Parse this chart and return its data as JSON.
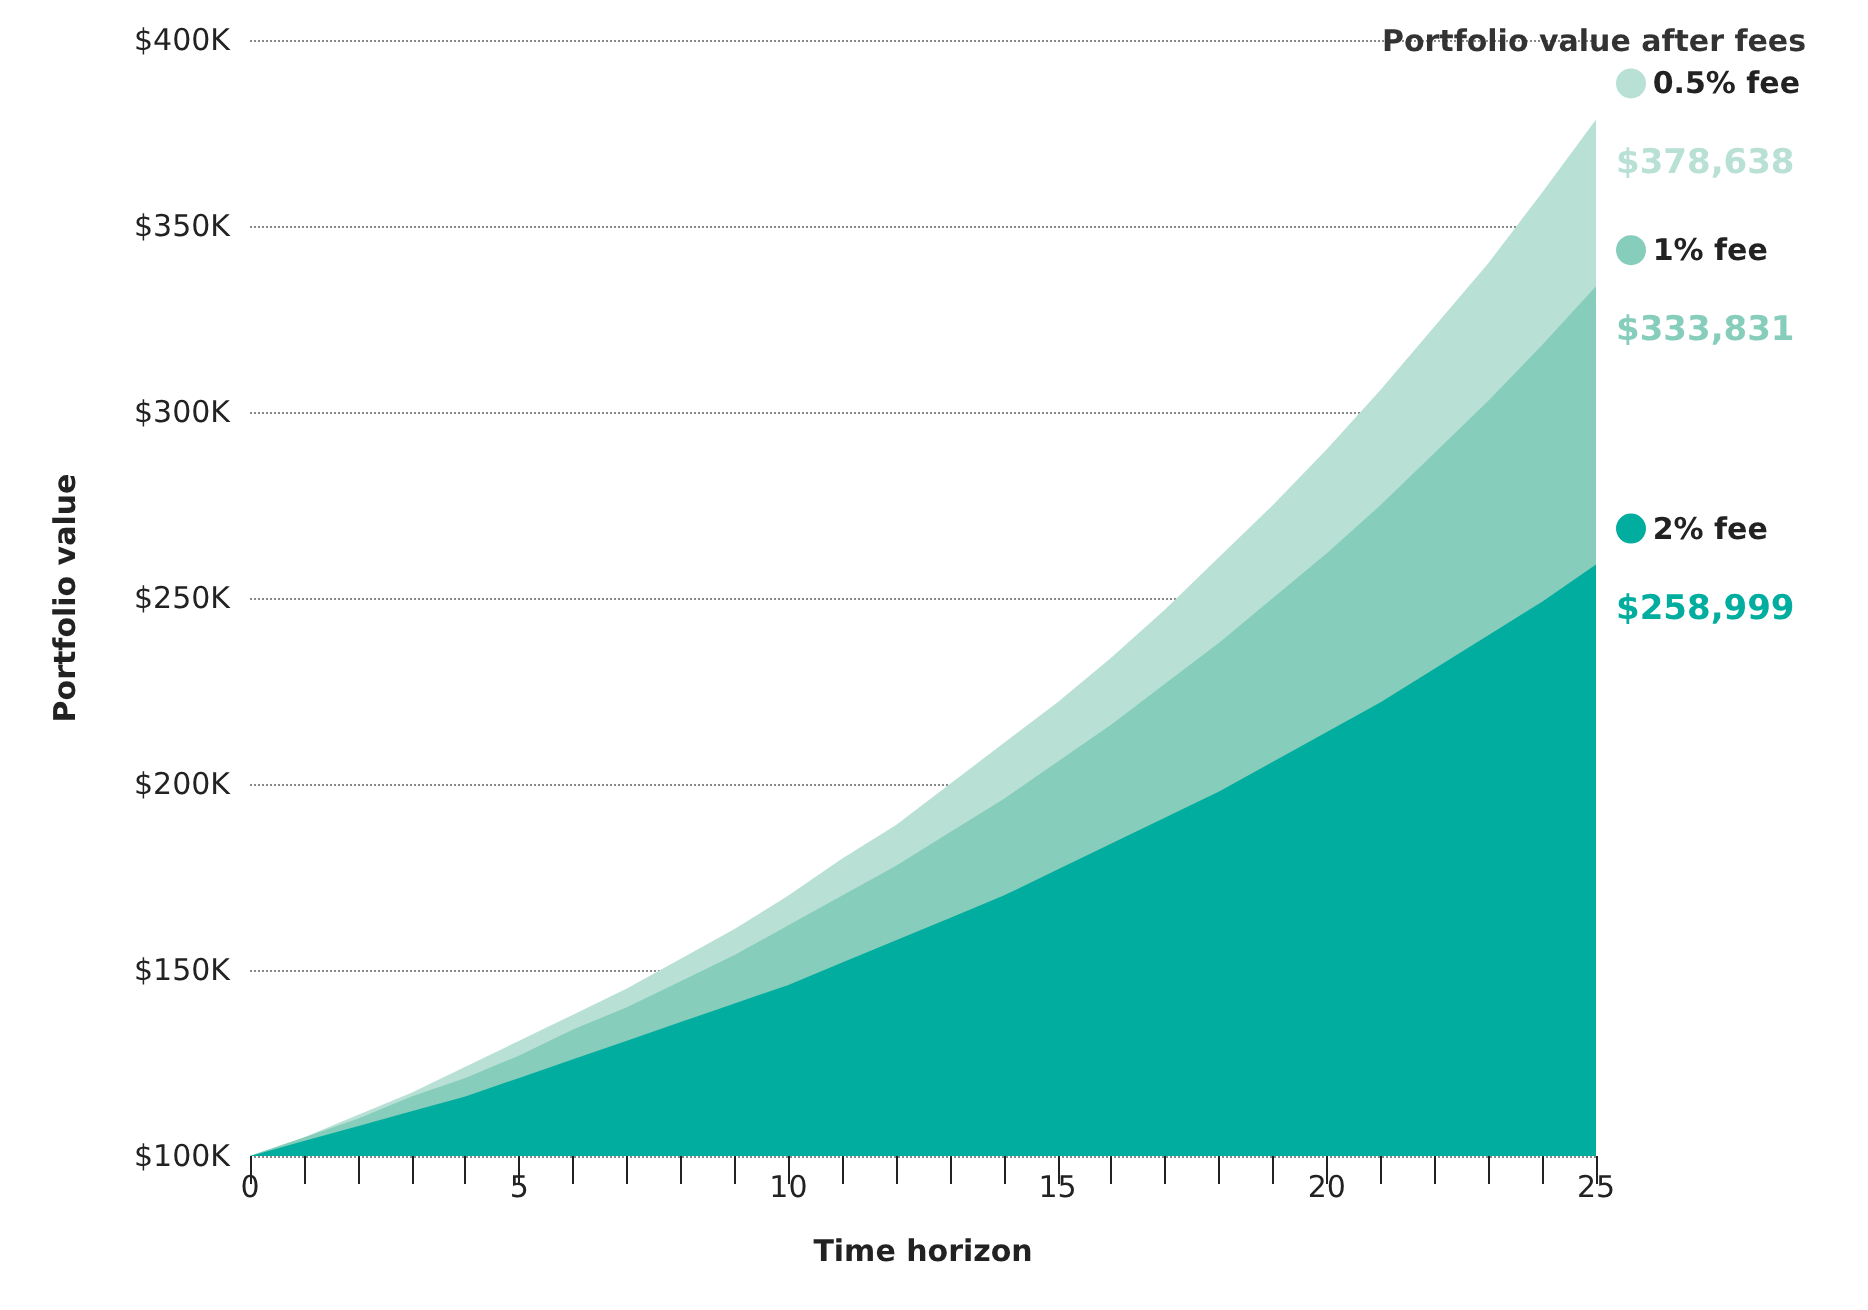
{
  "chart_data": {
    "type": "area",
    "xlabel": "Time horizon",
    "ylabel": "Portfolio value",
    "legend_title": "Portfolio value after fees",
    "x": [
      0,
      1,
      2,
      3,
      4,
      5,
      6,
      7,
      8,
      9,
      10,
      11,
      12,
      13,
      14,
      15,
      16,
      17,
      18,
      19,
      20,
      21,
      22,
      23,
      24,
      25
    ],
    "xlim": [
      0,
      25
    ],
    "xticks": [
      0,
      {
        "value": 1,
        "label": null
      },
      {
        "value": 2,
        "label": null
      },
      {
        "value": 3,
        "label": null
      },
      {
        "value": 4,
        "label": null
      },
      5,
      {
        "value": 6,
        "label": null
      },
      {
        "value": 7,
        "label": null
      },
      {
        "value": 8,
        "label": null
      },
      {
        "value": 9,
        "label": null
      },
      10,
      {
        "value": 11,
        "label": null
      },
      {
        "value": 12,
        "label": null
      },
      {
        "value": 13,
        "label": null
      },
      {
        "value": 14,
        "label": null
      },
      15,
      {
        "value": 16,
        "label": null
      },
      {
        "value": 17,
        "label": null
      },
      {
        "value": 18,
        "label": null
      },
      {
        "value": 19,
        "label": null
      },
      20,
      {
        "value": 21,
        "label": null
      },
      {
        "value": 22,
        "label": null
      },
      {
        "value": 23,
        "label": null
      },
      {
        "value": 24,
        "label": null
      },
      25
    ],
    "ylim": [
      100000,
      400000
    ],
    "yticks": [
      {
        "value": 100000,
        "label": "$100K"
      },
      {
        "value": 150000,
        "label": "$150K"
      },
      {
        "value": 200000,
        "label": "$200K"
      },
      {
        "value": 250000,
        "label": "$250K"
      },
      {
        "value": 300000,
        "label": "$300K"
      },
      {
        "value": 350000,
        "label": "$350K"
      },
      {
        "value": 400000,
        "label": "$400K"
      }
    ],
    "grid": "y",
    "marker": "none",
    "legend": "right",
    "series": [
      {
        "name": "0.5% fee",
        "color": "#b9e0d5",
        "values": [
          100000,
          105000,
          111000,
          117000,
          124000,
          131000,
          138000,
          145000,
          153000,
          161000,
          170000,
          180000,
          189000,
          200000,
          211000,
          222000,
          234000,
          247000,
          261000,
          275000,
          290000,
          306000,
          323000,
          340000,
          359000,
          378638
        ],
        "value_labels": [
          null,
          null,
          null,
          null,
          null,
          null,
          null,
          null,
          null,
          null,
          null,
          null,
          null,
          null,
          null,
          null,
          null,
          null,
          null,
          null,
          null,
          null,
          null,
          null,
          null,
          "$378,638"
        ]
      },
      {
        "name": "1% fee",
        "color": "#86cdbb",
        "values": [
          100000,
          105000,
          110000,
          116000,
          121000,
          127000,
          134000,
          140000,
          147000,
          154000,
          162000,
          170000,
          178000,
          187000,
          196000,
          206000,
          216000,
          227000,
          238000,
          250000,
          262000,
          275000,
          289000,
          303000,
          318000,
          333831
        ],
        "value_labels": [
          null,
          null,
          null,
          null,
          null,
          null,
          null,
          null,
          null,
          null,
          null,
          null,
          null,
          null,
          null,
          null,
          null,
          null,
          null,
          null,
          null,
          null,
          null,
          null,
          null,
          "$333,831"
        ]
      },
      {
        "name": "2% fee",
        "color": "#00ad9f",
        "values": [
          100000,
          104000,
          108000,
          112000,
          116000,
          121000,
          126000,
          131000,
          136000,
          141000,
          146000,
          152000,
          158000,
          164000,
          170000,
          177000,
          184000,
          191000,
          198000,
          206000,
          214000,
          222000,
          231000,
          240000,
          249000,
          258999
        ],
        "value_labels": [
          null,
          null,
          null,
          null,
          null,
          null,
          null,
          null,
          null,
          null,
          null,
          null,
          null,
          null,
          null,
          null,
          null,
          null,
          null,
          null,
          null,
          null,
          null,
          null,
          null,
          "$258,999"
        ]
      }
    ]
  }
}
